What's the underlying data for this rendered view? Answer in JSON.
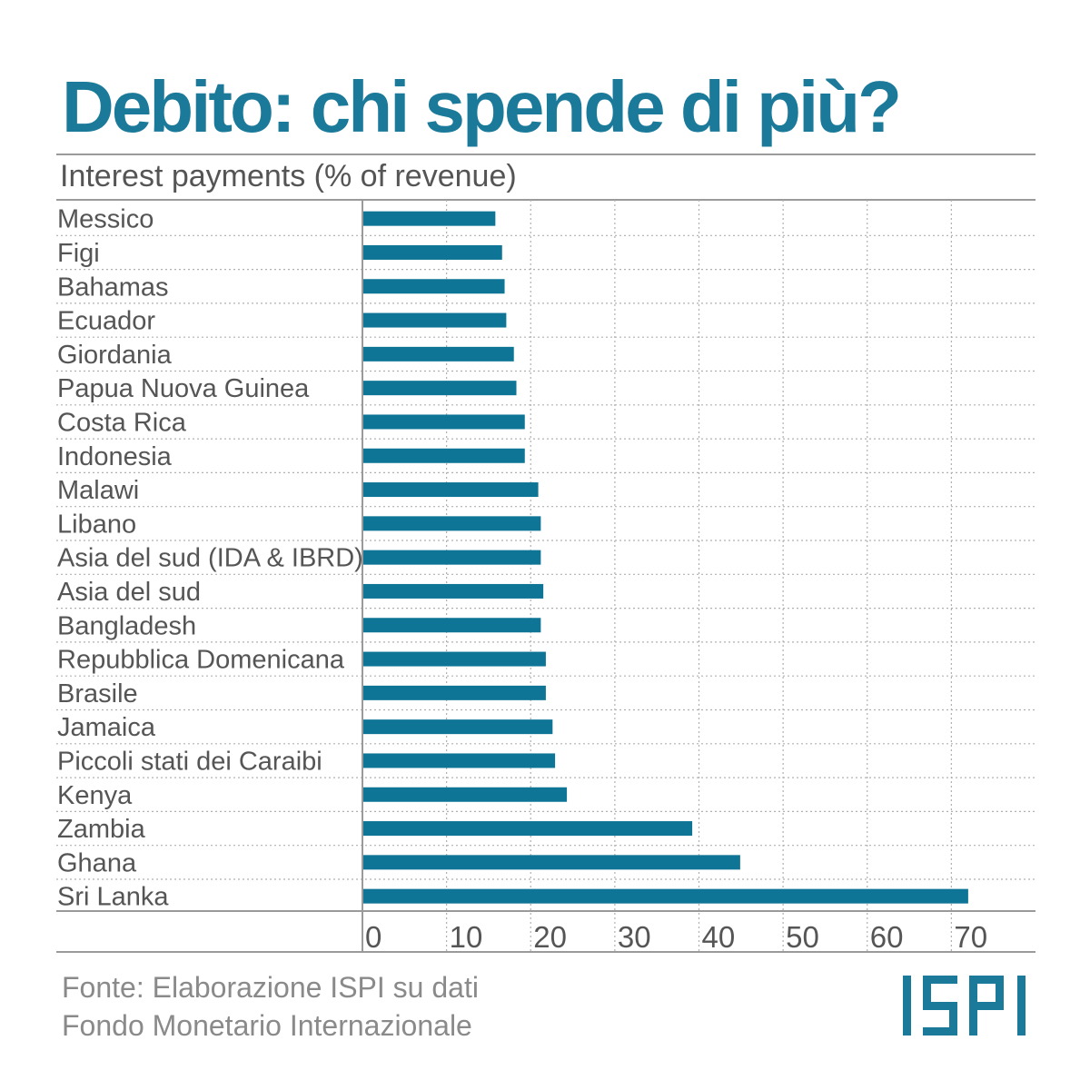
{
  "title": "Debito: chi spende di più?",
  "source": {
    "line1": "Fonte: Elaborazione ISPI su dati",
    "line2": "Fondo Monetario Internazionale"
  },
  "logo_text": "ISPI",
  "colors": {
    "accent": "#1b7a9a",
    "bar": "#0f7596",
    "text": "#555555",
    "source": "#8a8a8a",
    "grid": "#b0b0b0"
  },
  "chart_data": {
    "type": "bar",
    "orientation": "horizontal",
    "title": "Debito: chi spende di più?",
    "subtitle": "Interest payments (% of revenue)",
    "categories": [
      "Messico",
      "Figi",
      "Bahamas",
      "Ecuador",
      "Giordania",
      "Papua Nuova Guinea",
      "Costa Rica",
      "Indonesia",
      "Malawi",
      "Libano",
      "Asia del sud (IDA & IBRD)",
      "Asia del sud",
      "Bangladesh",
      "Repubblica Domenicana",
      "Brasile",
      "Jamaica",
      "Piccoli stati dei Caraibi",
      "Kenya",
      "Zambia",
      "Ghana",
      "Sri Lanka"
    ],
    "values": [
      15.8,
      16.6,
      16.9,
      17.1,
      18.0,
      18.3,
      19.3,
      19.3,
      20.9,
      21.2,
      21.2,
      21.5,
      21.2,
      21.8,
      21.8,
      22.6,
      22.9,
      24.3,
      39.2,
      44.9,
      72.0
    ],
    "xlim": [
      0,
      80
    ],
    "xticks": [
      0,
      10,
      20,
      30,
      40,
      50,
      60,
      70
    ],
    "grid": "vertical dotted",
    "legend": "none"
  }
}
